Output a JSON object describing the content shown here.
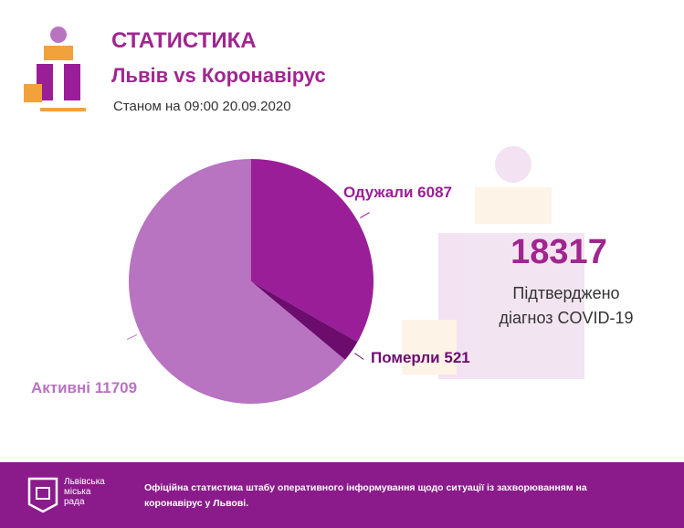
{
  "header": {
    "title": "СТАТИСТИКА",
    "subtitle": "Львів vs Коронавірус",
    "date": "Станом на 09:00 20.09.2020"
  },
  "chart_data": {
    "type": "pie",
    "categories": [
      "Одужали",
      "Померли",
      "Активні"
    ],
    "values": [
      6087,
      521,
      11709
    ],
    "colors": [
      "#9a1e98",
      "#6c0d6e",
      "#b873c1"
    ]
  },
  "summary": {
    "total": 18317,
    "caption": [
      "Підтверджено",
      "діагноз COVID-19"
    ]
  },
  "footer": {
    "logo": [
      "Львівська",
      "міська",
      "рада"
    ],
    "text": "Офіційна статистика штабу оперативного інформування щодо ситуації із захворюванням на коронавірус у Львові."
  }
}
